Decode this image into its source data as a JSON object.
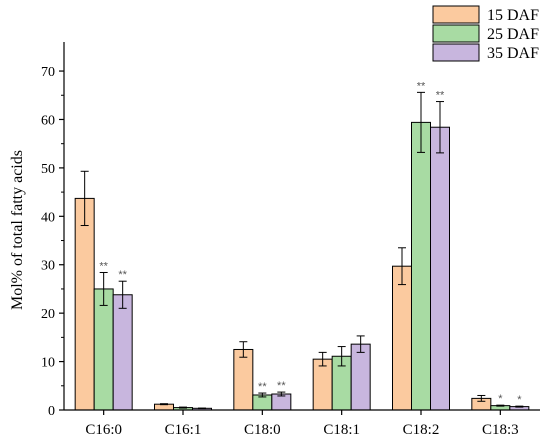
{
  "chart_data": {
    "type": "bar",
    "title": "",
    "xlabel": "",
    "ylabel": "Mol% of total fatty acids",
    "ylim": [
      0,
      76
    ],
    "yticks": [
      0,
      10,
      20,
      30,
      40,
      50,
      60,
      70
    ],
    "grid": false,
    "legend_position": "top-right",
    "categories": [
      "C16:0",
      "C16:1",
      "C18:0",
      "C18:1",
      "C18:2",
      "C18:3"
    ],
    "series": [
      {
        "name": "15 DAF",
        "color": "#FBCA9F",
        "values": [
          43.7,
          1.2,
          12.5,
          10.5,
          29.7,
          2.4
        ],
        "errors": [
          5.6,
          0.1,
          1.6,
          1.4,
          3.8,
          0.6
        ],
        "significance": [
          "",
          "",
          "",
          "",
          "",
          ""
        ]
      },
      {
        "name": "25 DAF",
        "color": "#A8DBA3",
        "values": [
          25.0,
          0.5,
          3.1,
          11.1,
          59.4,
          0.9
        ],
        "errors": [
          3.4,
          0.1,
          0.4,
          2.0,
          6.2,
          0.1
        ],
        "significance": [
          "**",
          "",
          "**",
          "",
          "**",
          "*"
        ]
      },
      {
        "name": "35 DAF",
        "color": "#C8B6DE",
        "values": [
          23.8,
          0.35,
          3.3,
          13.6,
          58.4,
          0.7
        ],
        "errors": [
          2.8,
          0.05,
          0.4,
          1.7,
          5.3,
          0.1
        ],
        "significance": [
          "**",
          "",
          "**",
          "",
          "**",
          "*"
        ]
      }
    ]
  }
}
